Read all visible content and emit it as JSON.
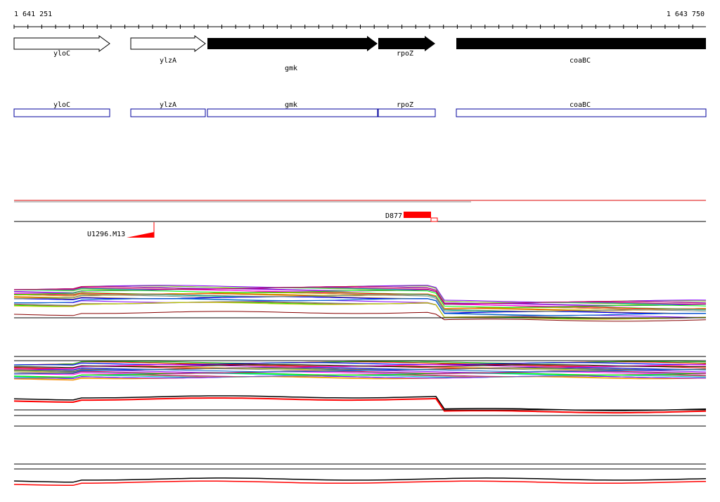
{
  "ruler": {
    "start": "1 641 251",
    "end": "1 643 750"
  },
  "genes": [
    {
      "label": "yloC"
    },
    {
      "label": "ylzA"
    },
    {
      "label": "gmk"
    },
    {
      "label": "rpoZ"
    },
    {
      "label": "coaBC"
    }
  ],
  "operons": [
    {
      "label": "yloC"
    },
    {
      "label": "ylzA"
    },
    {
      "label": "gmk"
    },
    {
      "label": "rpoZ"
    },
    {
      "label": "coaBC"
    }
  ],
  "features": [
    {
      "label": "D877"
    },
    {
      "label": "U1296.M13"
    }
  ]
}
